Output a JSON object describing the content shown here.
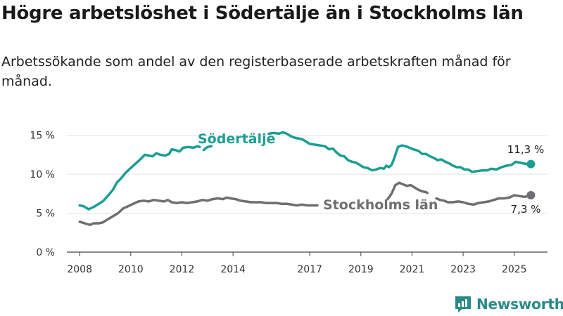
{
  "title": "Högre arbetslöshet i Södertälje än i Stockholms län",
  "subtitle": "Arbetssökande som andel av den registerbaserade arbetskraften månad för månad.",
  "brand": {
    "name": "Newsworthy",
    "color": "#2a8a86"
  },
  "chart_data": {
    "type": "line",
    "xlim": [
      2007.5,
      2026.3
    ],
    "ylim": [
      0,
      15.6
    ],
    "yticks": [
      0,
      5,
      10,
      15
    ],
    "ytick_labels": [
      "0 %",
      "5 %",
      "10 %",
      "15 %"
    ],
    "xticks": [
      2008,
      2010,
      2012,
      2014,
      2017,
      2019,
      2021,
      2023,
      2025
    ],
    "xtick_labels": [
      "2008",
      "2010",
      "2012",
      "2014",
      "2017",
      "2019",
      "2021",
      "2023",
      "2025"
    ],
    "grid": true,
    "series": [
      {
        "name": "Södertälje",
        "color": "#1a9e92",
        "end_label": "11,3 %",
        "segments": [
          [
            [
              2008.0,
              6.0
            ],
            [
              2008.15,
              5.9
            ],
            [
              2008.35,
              5.5
            ],
            [
              2008.55,
              5.8
            ],
            [
              2008.75,
              6.2
            ],
            [
              2008.9,
              6.5
            ],
            [
              2009.1,
              7.2
            ],
            [
              2009.3,
              8.0
            ],
            [
              2009.45,
              8.9
            ],
            [
              2009.6,
              9.4
            ],
            [
              2009.8,
              10.2
            ],
            [
              2010.0,
              10.8
            ],
            [
              2010.2,
              11.4
            ],
            [
              2010.4,
              12.0
            ],
            [
              2010.55,
              12.5
            ],
            [
              2010.7,
              12.4
            ],
            [
              2010.85,
              12.3
            ],
            [
              2011.0,
              12.7
            ],
            [
              2011.15,
              12.5
            ],
            [
              2011.35,
              12.4
            ],
            [
              2011.5,
              12.6
            ],
            [
              2011.6,
              13.2
            ],
            [
              2011.75,
              13.1
            ],
            [
              2011.9,
              12.9
            ],
            [
              2012.05,
              13.4
            ],
            [
              2012.25,
              13.5
            ],
            [
              2012.45,
              13.4
            ],
            [
              2012.6,
              13.6
            ],
            [
              2012.7,
              13.5
            ]
          ],
          [
            [
              2012.85,
              13.1
            ],
            [
              2013.0,
              13.5
            ],
            [
              2013.15,
              13.6
            ]
          ],
          [
            [
              2015.4,
              15.2
            ],
            [
              2015.6,
              15.3
            ],
            [
              2015.8,
              15.2
            ],
            [
              2015.95,
              15.4
            ],
            [
              2016.1,
              15.2
            ],
            [
              2016.25,
              14.9
            ],
            [
              2016.4,
              14.7
            ],
            [
              2016.55,
              14.6
            ],
            [
              2016.7,
              14.5
            ],
            [
              2016.85,
              14.2
            ],
            [
              2017.0,
              13.9
            ],
            [
              2017.2,
              13.8
            ],
            [
              2017.4,
              13.7
            ],
            [
              2017.6,
              13.6
            ],
            [
              2017.75,
              13.2
            ],
            [
              2017.9,
              13.3
            ],
            [
              2018.05,
              12.8
            ],
            [
              2018.2,
              12.4
            ],
            [
              2018.35,
              12.3
            ],
            [
              2018.5,
              11.8
            ],
            [
              2018.65,
              11.6
            ],
            [
              2018.8,
              11.5
            ],
            [
              2018.95,
              11.2
            ],
            [
              2019.1,
              10.9
            ],
            [
              2019.25,
              10.8
            ],
            [
              2019.45,
              10.5
            ],
            [
              2019.6,
              10.6
            ],
            [
              2019.75,
              10.8
            ],
            [
              2019.9,
              10.7
            ],
            [
              2020.0,
              11.1
            ],
            [
              2020.1,
              10.9
            ],
            [
              2020.2,
              11.2
            ],
            [
              2020.3,
              12.0
            ],
            [
              2020.45,
              13.5
            ],
            [
              2020.6,
              13.7
            ],
            [
              2020.75,
              13.6
            ],
            [
              2020.9,
              13.4
            ],
            [
              2021.05,
              13.2
            ],
            [
              2021.25,
              13.0
            ],
            [
              2021.4,
              12.6
            ],
            [
              2021.55,
              12.6
            ],
            [
              2021.7,
              12.3
            ],
            [
              2021.85,
              12.1
            ],
            [
              2022.0,
              11.8
            ],
            [
              2022.15,
              11.9
            ],
            [
              2022.3,
              11.6
            ],
            [
              2022.45,
              11.4
            ],
            [
              2022.6,
              11.1
            ],
            [
              2022.75,
              10.9
            ],
            [
              2022.9,
              10.9
            ],
            [
              2023.05,
              10.6
            ],
            [
              2023.2,
              10.6
            ],
            [
              2023.35,
              10.3
            ],
            [
              2023.55,
              10.4
            ],
            [
              2023.75,
              10.5
            ],
            [
              2023.95,
              10.5
            ],
            [
              2024.1,
              10.7
            ],
            [
              2024.3,
              10.6
            ],
            [
              2024.5,
              10.9
            ],
            [
              2024.7,
              11.1
            ],
            [
              2024.9,
              11.2
            ],
            [
              2025.05,
              11.6
            ],
            [
              2025.2,
              11.5
            ],
            [
              2025.35,
              11.4
            ],
            [
              2025.5,
              11.3
            ],
            [
              2025.65,
              11.3
            ]
          ]
        ]
      },
      {
        "name": "Stockholms län",
        "color": "#6f6f72",
        "end_label": "7,3 %",
        "segments": [
          [
            [
              2008.0,
              3.9
            ],
            [
              2008.2,
              3.7
            ],
            [
              2008.4,
              3.5
            ],
            [
              2008.55,
              3.7
            ],
            [
              2008.75,
              3.7
            ],
            [
              2008.9,
              3.8
            ],
            [
              2009.1,
              4.2
            ],
            [
              2009.3,
              4.6
            ],
            [
              2009.5,
              5.0
            ],
            [
              2009.7,
              5.6
            ],
            [
              2009.9,
              5.9
            ],
            [
              2010.1,
              6.2
            ],
            [
              2010.3,
              6.5
            ],
            [
              2010.5,
              6.6
            ],
            [
              2010.7,
              6.5
            ],
            [
              2010.9,
              6.7
            ],
            [
              2011.1,
              6.6
            ],
            [
              2011.3,
              6.5
            ],
            [
              2011.45,
              6.7
            ],
            [
              2011.6,
              6.4
            ],
            [
              2011.8,
              6.3
            ],
            [
              2012.0,
              6.4
            ],
            [
              2012.2,
              6.3
            ],
            [
              2012.4,
              6.4
            ],
            [
              2012.6,
              6.5
            ],
            [
              2012.8,
              6.7
            ],
            [
              2013.0,
              6.6
            ],
            [
              2013.2,
              6.8
            ],
            [
              2013.4,
              6.9
            ],
            [
              2013.6,
              6.8
            ],
            [
              2013.75,
              7.0
            ],
            [
              2013.9,
              6.9
            ],
            [
              2014.1,
              6.8
            ],
            [
              2014.3,
              6.6
            ],
            [
              2014.5,
              6.5
            ],
            [
              2014.7,
              6.4
            ],
            [
              2014.9,
              6.4
            ],
            [
              2015.1,
              6.4
            ],
            [
              2015.3,
              6.3
            ],
            [
              2015.5,
              6.3
            ],
            [
              2015.7,
              6.3
            ],
            [
              2015.9,
              6.2
            ],
            [
              2016.1,
              6.2
            ],
            [
              2016.3,
              6.1
            ],
            [
              2016.5,
              6.0
            ],
            [
              2016.7,
              6.1
            ],
            [
              2016.9,
              6.0
            ],
            [
              2017.1,
              6.0
            ],
            [
              2017.3,
              6.0
            ]
          ],
          [
            [
              2020.05,
              6.8
            ],
            [
              2020.2,
              7.5
            ],
            [
              2020.35,
              8.6
            ],
            [
              2020.5,
              8.9
            ],
            [
              2020.65,
              8.7
            ],
            [
              2020.8,
              8.5
            ],
            [
              2020.95,
              8.6
            ],
            [
              2021.1,
              8.3
            ],
            [
              2021.25,
              8.0
            ],
            [
              2021.4,
              7.8
            ],
            [
              2021.55,
              7.7
            ],
            [
              2021.6,
              7.6
            ]
          ],
          [
            [
              2021.95,
              6.9
            ],
            [
              2022.1,
              6.7
            ],
            [
              2022.25,
              6.6
            ],
            [
              2022.4,
              6.4
            ],
            [
              2022.6,
              6.4
            ],
            [
              2022.8,
              6.5
            ],
            [
              2023.0,
              6.4
            ],
            [
              2023.2,
              6.2
            ],
            [
              2023.4,
              6.1
            ],
            [
              2023.6,
              6.3
            ],
            [
              2023.8,
              6.4
            ],
            [
              2024.0,
              6.5
            ],
            [
              2024.2,
              6.7
            ],
            [
              2024.4,
              6.9
            ],
            [
              2024.6,
              6.9
            ],
            [
              2024.8,
              7.0
            ],
            [
              2025.0,
              7.3
            ],
            [
              2025.2,
              7.2
            ],
            [
              2025.4,
              7.1
            ],
            [
              2025.55,
              7.2
            ],
            [
              2025.65,
              7.3
            ]
          ]
        ]
      }
    ]
  }
}
